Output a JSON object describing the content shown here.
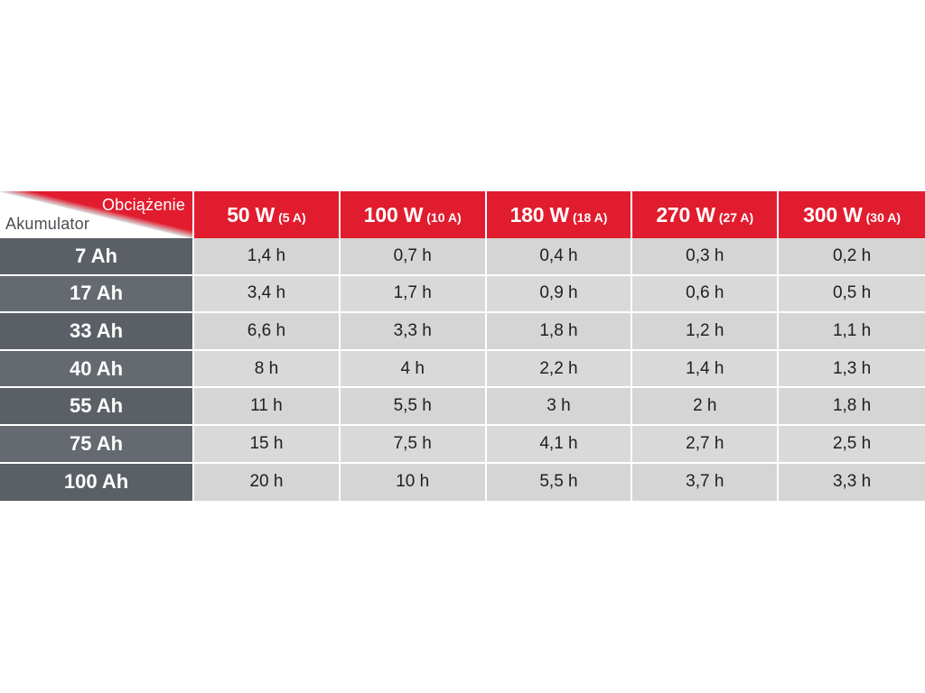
{
  "chart_data": {
    "type": "table",
    "corner": {
      "column_axis_label": "Obciążenie",
      "row_axis_label": "Akumulator"
    },
    "columns": [
      {
        "power": "50 W",
        "current": "(5 A)"
      },
      {
        "power": "100 W",
        "current": "(10 A)"
      },
      {
        "power": "180 W",
        "current": "(18 A)"
      },
      {
        "power": "270 W",
        "current": "(27 A)"
      },
      {
        "power": "300 W",
        "current": "(30 A)"
      }
    ],
    "rows": [
      {
        "battery": "7 Ah",
        "values": [
          "1,4 h",
          "0,7 h",
          "0,4 h",
          "0,3 h",
          "0,2 h"
        ]
      },
      {
        "battery": "17 Ah",
        "values": [
          "3,4 h",
          "1,7 h",
          "0,9 h",
          "0,6 h",
          "0,5 h"
        ]
      },
      {
        "battery": "33 Ah",
        "values": [
          "6,6 h",
          "3,3 h",
          "1,8 h",
          "1,2 h",
          "1,1 h"
        ]
      },
      {
        "battery": "40 Ah",
        "values": [
          "8 h",
          "4 h",
          "2,2 h",
          "1,4 h",
          "1,3 h"
        ]
      },
      {
        "battery": "55 Ah",
        "values": [
          "11 h",
          "5,5 h",
          "3 h",
          "2 h",
          "1,8 h"
        ]
      },
      {
        "battery": "75 Ah",
        "values": [
          "15 h",
          "7,5 h",
          "4,1 h",
          "2,7 h",
          "2,5 h"
        ]
      },
      {
        "battery": "100 Ah",
        "values": [
          "20 h",
          "10 h",
          "5,5 h",
          "3,7 h",
          "3,3 h"
        ]
      }
    ],
    "colors": {
      "header_red": "#e11c2e",
      "row_header_gray": "#5f656b",
      "cell_gray": "#d7d7d7"
    }
  }
}
